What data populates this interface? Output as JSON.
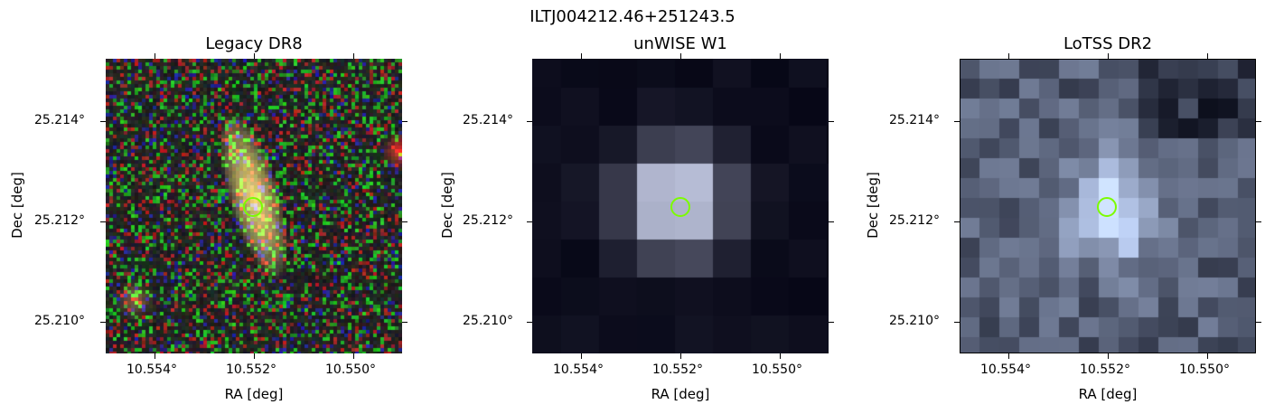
{
  "suptitle": "ILTJ004212.46+251243.5",
  "panels": [
    {
      "title": "Legacy DR8",
      "style": "optical",
      "xlabel": "RA [deg]",
      "ylabel": "Dec [deg]",
      "xticks": [
        "10.554°",
        "10.552°",
        "10.550°"
      ],
      "yticks": [
        "25.214°",
        "25.212°",
        "25.210°"
      ],
      "marker_color": "#7CFC00"
    },
    {
      "title": "unWISE W1",
      "style": "infrared",
      "xlabel": "RA [deg]",
      "ylabel": "Dec [deg]",
      "xticks": [
        "10.554°",
        "10.552°",
        "10.550°"
      ],
      "yticks": [
        "25.214°",
        "25.212°",
        "25.210°"
      ],
      "marker_color": "#7CFC00"
    },
    {
      "title": "LoTSS DR2",
      "style": "radio",
      "xlabel": "RA [deg]",
      "ylabel": "Dec [deg]",
      "xticks": [
        "10.554°",
        "10.552°",
        "10.550°"
      ],
      "yticks": [
        "25.214°",
        "25.212°",
        "25.210°"
      ],
      "marker_color": "#7CFC00"
    }
  ]
}
